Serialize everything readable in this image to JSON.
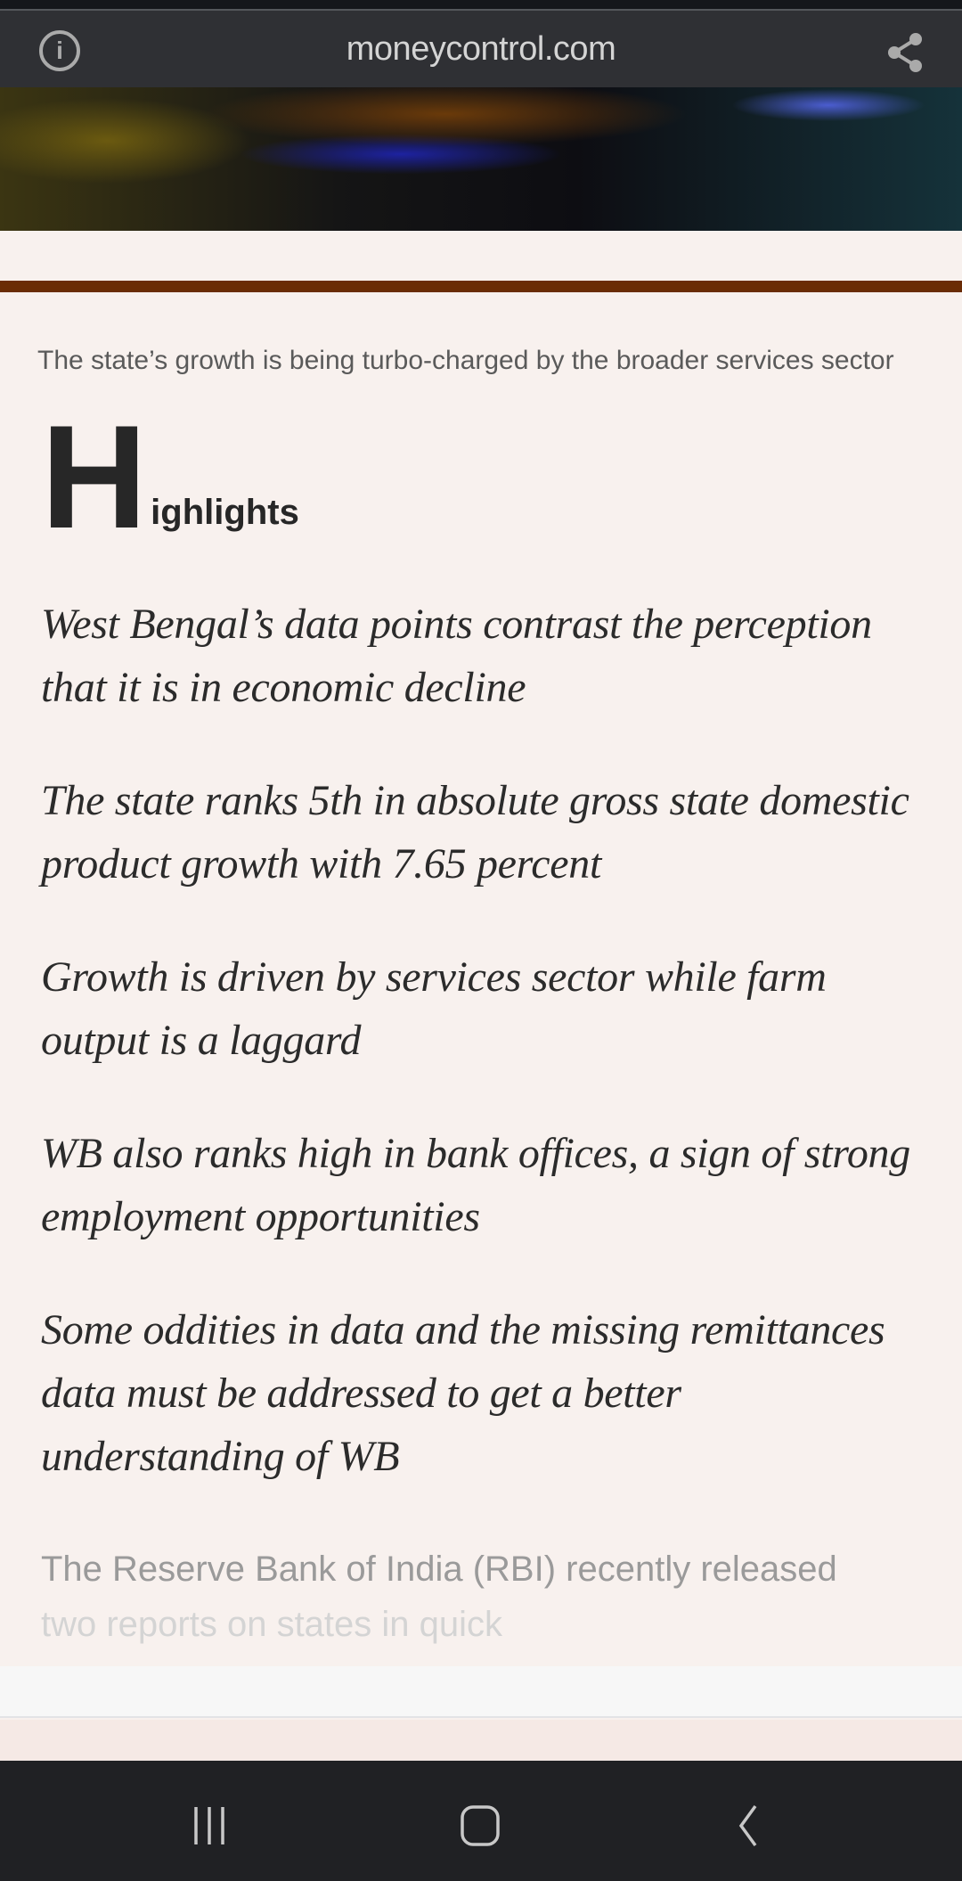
{
  "browser": {
    "site": "moneycontrol.com",
    "icons": [
      "info-icon",
      "share-icon"
    ]
  },
  "article": {
    "caption": "The state’s growth is being turbo-charged by the broader services sector",
    "highlights_dropcap": "H",
    "highlights_rest": "ighlights",
    "highlights": [
      "West Bengal’s data points contrast the perception that it is in economic decline",
      "The state ranks 5th in absolute gross state domestic product growth with 7.65 percent",
      "Growth is driven by services sector while farm output is a laggard",
      "WB also ranks high in bank offices, a sign of strong employment opportunities",
      "Some oddities in data and the missing remittances data must be addressed to get a better understanding of WB"
    ],
    "body_line1": "The Reserve Bank of India (RBI) recently released",
    "body_line2": "two reports on states in quick",
    "accent_color": "#6a2c05"
  },
  "navbar": {
    "icons": [
      "recent-apps-icon",
      "home-icon",
      "back-icon"
    ]
  }
}
